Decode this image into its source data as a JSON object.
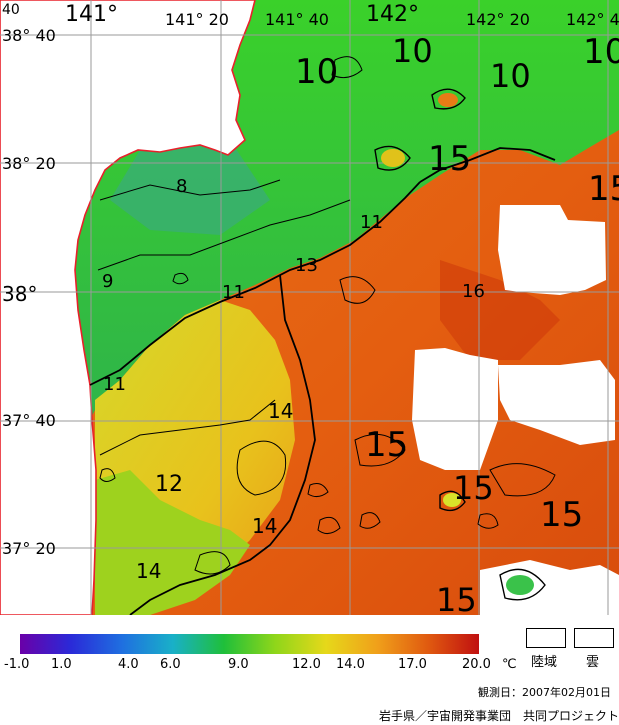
{
  "map": {
    "lat_labels": [
      "38° 40",
      "38° 20",
      "38°",
      "37° 40",
      "37° 20"
    ],
    "lon_labels": [
      "141°",
      "141° 20",
      "141° 40",
      "142°",
      "142° 20",
      "142° 4"
    ],
    "corner_label": "40",
    "contour_labels": [
      "10",
      "10",
      "10",
      "10",
      "15",
      "15",
      "8",
      "11",
      "13",
      "11",
      "9",
      "16",
      "11",
      "14",
      "15",
      "12",
      "15",
      "14",
      "15",
      "14",
      "15"
    ],
    "colors": {
      "land": "#ffffff",
      "coastline": "#e8202a",
      "grid": "#9a9a9a",
      "cold": "#2fbf3c",
      "warm": "#e0620e"
    }
  },
  "legend": {
    "tick_labels": [
      "-1.0",
      "1.0",
      "4.0",
      "6.0",
      "9.0",
      "12.0",
      "14.0",
      "17.0",
      "20.0"
    ],
    "unit": "℃",
    "colors": [
      "#6a00a8",
      "#2a2ad8",
      "#1f6fe0",
      "#19b0c8",
      "#1fbf3a",
      "#8fd61a",
      "#e6d81a",
      "#f0a01a",
      "#e05a10",
      "#c01010"
    ],
    "land_label": "陸域",
    "cloud_label": "雲"
  },
  "footer": {
    "observation_date": "観測日：2007年02月01日",
    "credit": "岩手県／宇宙開発事業団　共同プロジェクト"
  }
}
